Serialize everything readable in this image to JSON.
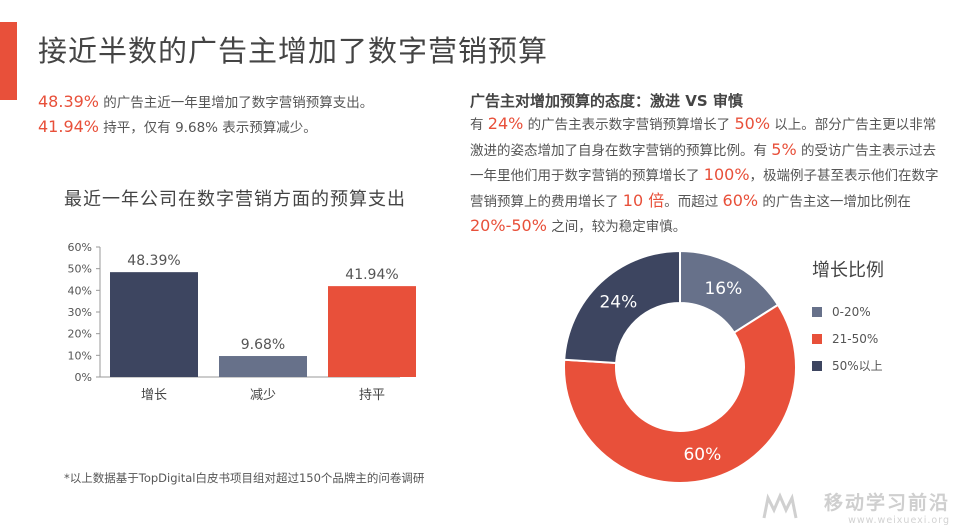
{
  "title": "接近半数的广告主增加了数字营销预算",
  "summary": {
    "line1_value": "48.39%",
    "line1_text": " 的广告主近一年里增加了数字营销预算支出。",
    "line2_value": "41.94%",
    "line2_text": " 持平，仅有 9.68% 表示预算减少。"
  },
  "attitude": {
    "title": "广告主对增加预算的态度：激进 VS 审慎",
    "seg": [
      "有 ",
      "24%",
      " 的广告主表示数字营销预算增长了 ",
      "50%",
      " 以上。部分广告主更以非常激进的姿态增加了自身在数字营销的预算比例。有 ",
      "5%",
      " 的受访广告主表示过去一年里他们用于数字营销的预算增长了 ",
      "100%",
      "，极端例子甚至表示他们在数字营销预算上的费用增长了 ",
      "10 倍",
      "。而超过 ",
      "60%",
      " 的广告主这一增加比例在 ",
      "20%-50%",
      " 之间，较为稳定审慎。"
    ]
  },
  "footnote": "*以上数据基于TopDigital白皮书项目组对超过150个品牌主的问卷调研",
  "chart_data": [
    {
      "type": "bar",
      "title": "最近一年公司在数字营销方面的预算支出",
      "categories": [
        "增长",
        "减少",
        "持平"
      ],
      "values": [
        48.39,
        9.68,
        41.94
      ],
      "data_labels": [
        "48.39%",
        "9.68%",
        "41.94%"
      ],
      "colors": [
        "#3d4560",
        "#67718a",
        "#e8503a"
      ],
      "ylim": [
        0,
        60
      ],
      "yticks": [
        "0%",
        "10%",
        "20%",
        "30%",
        "40%",
        "50%",
        "60%"
      ],
      "grid": false
    },
    {
      "type": "pie",
      "style": "donut",
      "legend_title": "增长比例",
      "legend_position": "right",
      "slices": [
        {
          "label": "0-20%",
          "value": 16,
          "data_label": "16%",
          "color": "#67718a"
        },
        {
          "label": "21-50%",
          "value": 60,
          "data_label": "60%",
          "color": "#e8503a"
        },
        {
          "label": "50%以上",
          "value": 24,
          "data_label": "24%",
          "color": "#3d4560"
        }
      ]
    }
  ],
  "watermark": {
    "cn": "移动学习前沿",
    "en": "www.weixuexi.org"
  }
}
